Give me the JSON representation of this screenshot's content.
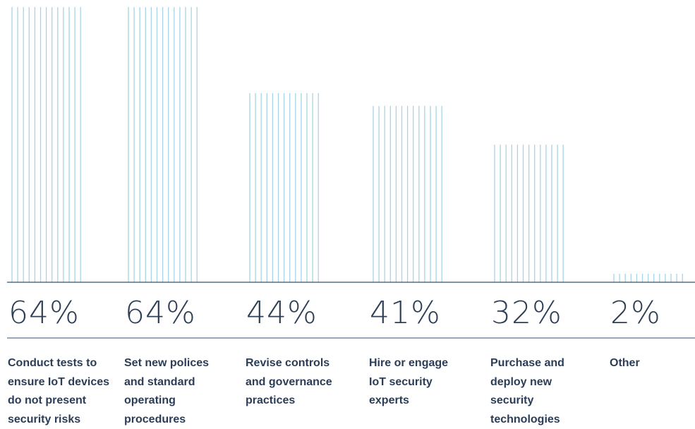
{
  "chart_data": {
    "type": "bar",
    "categories": [
      "Conduct tests to\nensure IoT devices\ndo not present\nsecurity risks",
      "Set new polices\nand standard\noperating\nprocedures",
      "Revise controls\nand governance\npractices",
      "Hire or engage\nIoT security\nexperts",
      "Purchase and\ndeploy new\nsecurity\ntechnologies",
      "Other"
    ],
    "values": [
      64,
      64,
      44,
      41,
      32,
      2
    ],
    "value_labels": [
      "64%",
      "64%",
      "44%",
      "41%",
      "32%",
      "2%"
    ],
    "ylim": [
      0,
      64
    ],
    "grid": false,
    "legend": "none"
  },
  "colors": {
    "bar_stripe": "#a9d3e6",
    "baseline": "#34506e",
    "value_text": "#2e3f55",
    "label_text": "#2b3d57"
  }
}
